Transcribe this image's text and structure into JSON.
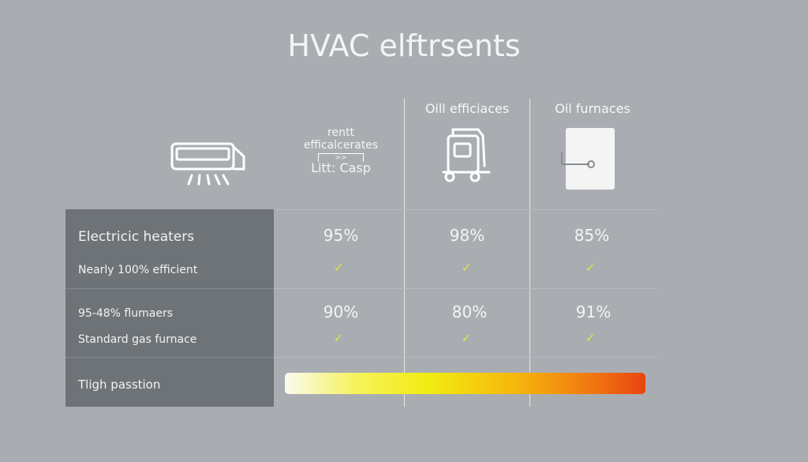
{
  "title": "HVAC elftrsents",
  "columns": [
    {
      "label_lines": [
        "rentt",
        "efficalcerates"
      ],
      "sub": "Litt: Casp",
      "badge": ">>"
    },
    {
      "label": "Oill efficiaces"
    },
    {
      "label": "Oil furnaces"
    }
  ],
  "rows": [
    {
      "label": "Electricic heaters",
      "sub": "Nearly 100% efficient",
      "values": [
        "95%",
        "98%",
        "85%"
      ]
    },
    {
      "label": "95-48% flumaers",
      "sub": "Standard gas furnace",
      "values": [
        "90%",
        "80%",
        "91%"
      ]
    }
  ],
  "scale_label": "Tligh passtion",
  "check": "✓",
  "colors": {
    "background": "#a9adb2",
    "panel": "#6e7378",
    "check": "#e4e64a",
    "gradient": [
      "#fafaf2",
      "#f2ec10",
      "#ea4410"
    ]
  }
}
